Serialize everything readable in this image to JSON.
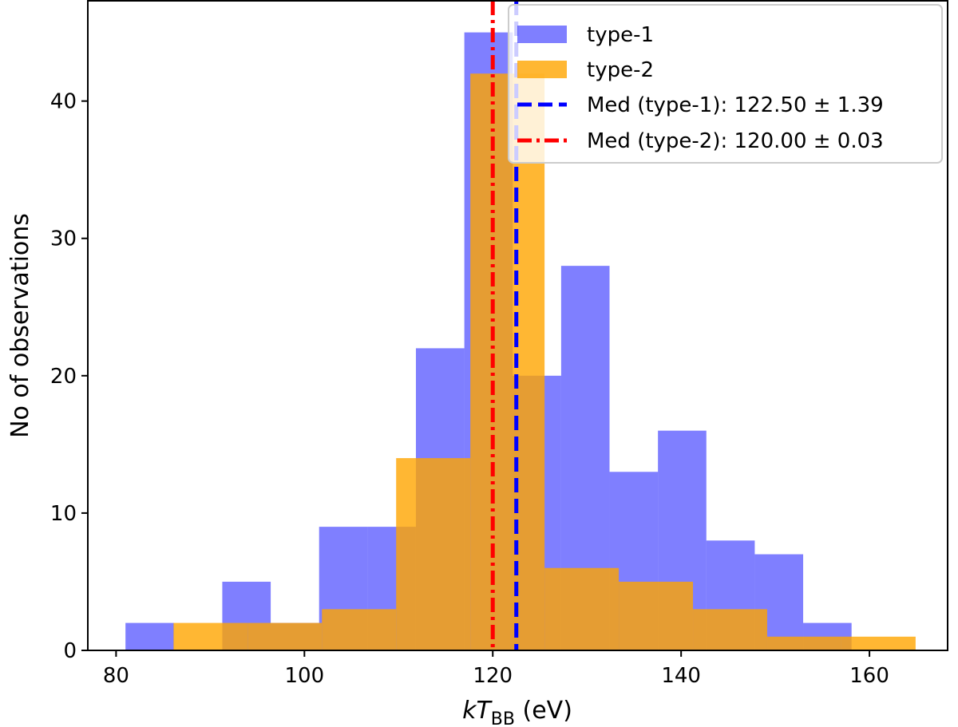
{
  "chart_data": {
    "type": "bar",
    "title": "",
    "xlabel": {
      "italic": "kT",
      "sub": "BB",
      "rest": " (eV)"
    },
    "ylabel": "No of observations",
    "xlim": [
      77.0,
      168.3
    ],
    "ylim": [
      0,
      47.3
    ],
    "xticks": [
      80,
      100,
      120,
      140,
      160
    ],
    "yticks": [
      0,
      10,
      20,
      30,
      40
    ],
    "grid": false,
    "legend_position": "top-right",
    "series": [
      {
        "name": "type-1",
        "color": "#0000ff",
        "opacity": 0.5,
        "bin_start": 81.0,
        "bin_width": 5.14,
        "counts": [
          2,
          0,
          5,
          2,
          9,
          9,
          22,
          45,
          20,
          28,
          13,
          16,
          8,
          7,
          2
        ]
      },
      {
        "name": "type-2",
        "color": "#ffa500",
        "opacity": 0.8,
        "bin_start": 86.1,
        "bin_width": 7.88,
        "counts": [
          2,
          2,
          3,
          14,
          42,
          6,
          5,
          3,
          1,
          1
        ]
      }
    ],
    "vlines": [
      {
        "label": "Med (type-1): 122.50 ± 1.39",
        "x": 122.5,
        "color": "#0000ff",
        "style": "dashed"
      },
      {
        "label": "Med (type-2): 120.00 ± 0.03",
        "x": 120.0,
        "color": "#ff0000",
        "style": "dashdot"
      }
    ]
  }
}
